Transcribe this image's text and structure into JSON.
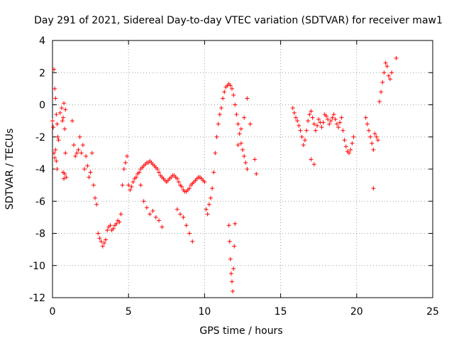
{
  "chart_data": {
    "type": "scatter",
    "title": "Day 291 of 2021, Sidereal Day-to-day VTEC variation (SDTVAR) for receiver maw1",
    "xlabel": "GPS time / hours",
    "ylabel": "SDTVAR / TECUs",
    "xlim": [
      0,
      25
    ],
    "ylim": [
      -12,
      4
    ],
    "xticks": [
      "0",
      "5",
      "10",
      "15",
      "20",
      "25"
    ],
    "yticks": [
      "4",
      "2",
      "0",
      "-2",
      "-4",
      "-6",
      "-8",
      "-10",
      "-12"
    ],
    "grid": true,
    "marker": "+",
    "color": "#ff0000",
    "series": [
      {
        "name": "SDTVAR",
        "x": [
          0.0,
          0.05,
          0.1,
          0.15,
          0.2,
          0.25,
          0.3,
          0.1,
          0.15,
          0.2,
          0.25,
          0.3,
          0.35,
          0.4,
          0.5,
          0.6,
          0.65,
          0.7,
          0.75,
          0.8,
          0.85,
          0.9,
          0.7,
          0.75,
          0.8,
          0.85,
          1.3,
          1.4,
          1.5,
          1.6,
          1.7,
          1.8,
          1.9,
          2.0,
          2.1,
          2.2,
          2.3,
          2.4,
          2.5,
          2.6,
          2.7,
          2.8,
          2.9,
          3.0,
          3.1,
          3.2,
          3.3,
          3.4,
          3.5,
          3.6,
          3.7,
          3.8,
          3.9,
          4.0,
          4.1,
          4.2,
          4.3,
          4.4,
          4.5,
          4.6,
          4.7,
          4.8,
          4.9,
          5.0,
          5.1,
          5.2,
          5.3,
          5.4,
          5.5,
          5.6,
          5.7,
          5.8,
          5.9,
          6.0,
          6.1,
          6.2,
          6.3,
          6.4,
          6.5,
          6.6,
          6.7,
          6.8,
          6.9,
          7.0,
          7.1,
          7.2,
          7.3,
          7.4,
          7.5,
          7.6,
          7.7,
          7.8,
          7.9,
          8.0,
          8.1,
          8.2,
          8.3,
          8.4,
          8.5,
          8.6,
          8.7,
          8.8,
          8.9,
          9.0,
          9.1,
          9.2,
          9.3,
          9.4,
          9.5,
          9.6,
          9.7,
          9.8,
          9.9,
          10.0,
          5.8,
          6.0,
          6.2,
          6.4,
          6.6,
          6.8,
          7.0,
          7.2,
          8.2,
          8.4,
          8.6,
          8.8,
          9.0,
          9.2,
          10.1,
          10.2,
          10.3,
          10.4,
          10.5,
          10.6,
          10.7,
          10.8,
          10.9,
          11.0,
          11.1,
          11.2,
          11.3,
          11.4,
          11.5,
          11.6,
          11.7,
          11.8,
          11.9,
          12.0,
          12.1,
          12.2,
          12.3,
          12.4,
          12.5,
          12.6,
          12.7,
          12.8,
          11.6,
          11.65,
          11.7,
          11.75,
          11.8,
          11.85,
          11.9,
          11.95,
          12.0,
          12.2,
          12.4,
          12.6,
          12.8,
          13.0,
          13.3,
          13.4,
          15.8,
          15.9,
          16.0,
          16.1,
          16.2,
          16.3,
          16.4,
          16.5,
          16.6,
          16.7,
          16.8,
          16.9,
          17.0,
          17.1,
          17.2,
          17.3,
          17.4,
          17.5,
          17.6,
          17.7,
          17.8,
          17.9,
          18.0,
          18.1,
          18.2,
          18.3,
          18.4,
          18.5,
          18.6,
          18.7,
          18.8,
          18.9,
          19.0,
          19.1,
          19.2,
          19.3,
          19.4,
          19.5,
          19.6,
          19.7,
          19.8,
          17.0,
          17.2,
          20.6,
          20.7,
          20.8,
          20.9,
          21.0,
          21.1,
          21.2,
          21.3,
          21.4,
          21.5,
          21.6,
          21.7,
          21.8,
          21.9,
          22.0,
          22.1,
          22.2,
          22.3,
          21.1,
          22.6
        ],
        "y": [
          -1.0,
          -1.4,
          -3.0,
          -3.3,
          -2.8,
          -3.5,
          -4.0,
          2.2,
          1.0,
          0.4,
          -0.6,
          -1.2,
          -2.0,
          -2.2,
          -0.5,
          -0.2,
          -1.0,
          -0.8,
          0.1,
          -1.5,
          -0.3,
          -4.5,
          -4.2,
          -4.6,
          -4.3,
          -3.0,
          -1.0,
          -2.5,
          -3.2,
          -3.0,
          -2.8,
          -2.0,
          -3.0,
          -2.5,
          -4.0,
          -3.2,
          -3.8,
          -4.5,
          -4.2,
          -3.0,
          -5.0,
          -5.8,
          -6.2,
          -8.0,
          -8.3,
          -8.5,
          -8.8,
          -8.6,
          -8.4,
          -7.8,
          -7.6,
          -7.5,
          -7.8,
          -7.7,
          -7.5,
          -7.4,
          -7.2,
          -7.3,
          -6.8,
          -5.0,
          -4.0,
          -3.6,
          -3.2,
          -5.0,
          -5.3,
          -5.1,
          -4.8,
          -4.6,
          -4.5,
          -4.3,
          -4.2,
          -4.0,
          -3.9,
          -3.8,
          -3.7,
          -3.6,
          -3.6,
          -3.5,
          -3.6,
          -3.7,
          -3.8,
          -3.9,
          -4.0,
          -4.2,
          -4.4,
          -4.5,
          -4.6,
          -4.7,
          -4.8,
          -4.7,
          -4.6,
          -4.5,
          -4.4,
          -4.4,
          -4.5,
          -4.6,
          -4.8,
          -5.0,
          -5.1,
          -5.3,
          -5.4,
          -5.4,
          -5.3,
          -5.2,
          -5.0,
          -4.9,
          -4.8,
          -4.7,
          -4.6,
          -4.5,
          -4.5,
          -4.6,
          -4.7,
          -4.8,
          -5.0,
          -6.0,
          -6.4,
          -6.8,
          -6.6,
          -7.0,
          -7.2,
          -7.6,
          -6.5,
          -6.8,
          -7.0,
          -7.5,
          -8.0,
          -8.5,
          -6.5,
          -6.8,
          -6.2,
          -5.8,
          -5.2,
          -4.2,
          -3.0,
          -2.0,
          -1.2,
          -0.6,
          -0.2,
          0.4,
          0.8,
          1.1,
          1.2,
          1.3,
          1.2,
          1.0,
          0.6,
          0.0,
          -0.6,
          -1.2,
          -1.8,
          -2.4,
          -2.8,
          -3.2,
          -3.6,
          -4.0,
          -7.5,
          -8.5,
          -9.6,
          -10.5,
          -11.0,
          -11.6,
          -10.2,
          -8.8,
          -7.4,
          -2.5,
          -1.5,
          -0.8,
          0.4,
          -1.2,
          -3.4,
          -4.3,
          -0.2,
          -0.5,
          -0.8,
          -1.0,
          -1.3,
          -1.6,
          -2.0,
          -2.5,
          -2.2,
          -1.6,
          -1.0,
          -0.6,
          -0.4,
          -0.8,
          -1.2,
          -1.6,
          -1.3,
          -0.9,
          -1.1,
          -1.4,
          -1.1,
          -0.6,
          -0.7,
          -0.9,
          -1.2,
          -1.0,
          -0.8,
          -0.6,
          -0.9,
          -1.2,
          -1.4,
          -1.1,
          -0.8,
          -1.6,
          -2.2,
          -2.6,
          -2.9,
          -3.0,
          -2.8,
          -2.4,
          -2.0,
          -3.4,
          -3.7,
          -0.8,
          -1.2,
          -1.6,
          -2.0,
          -2.4,
          -2.8,
          -1.8,
          -2.0,
          -2.2,
          0.2,
          0.8,
          1.4,
          2.0,
          2.6,
          2.4,
          1.8,
          1.6,
          2.0,
          -5.2,
          2.9
        ]
      }
    ]
  }
}
